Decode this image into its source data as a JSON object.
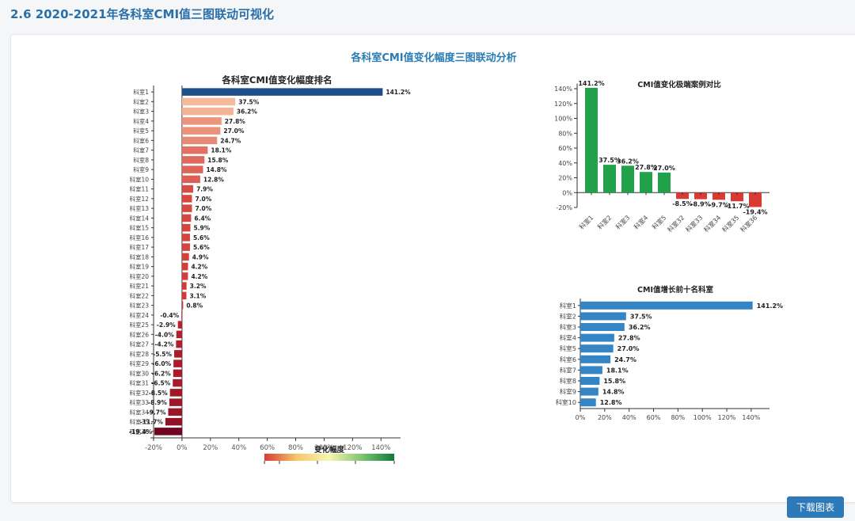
{
  "page": {
    "heading": "2.6 2020-2021年各科室CMI值三图联动可视化",
    "title": "各科室CMI值变化幅度三图联动分析",
    "download_label": "下载图表"
  },
  "colors": {
    "accent": "#2e7ab8",
    "positive_green": "#21a24a",
    "negative_red": "#d93b32",
    "top10_blue": "#3385c6",
    "first_bar": "#1f4f8a"
  },
  "chart_data": [
    {
      "id": "ranking",
      "type": "bar",
      "orientation": "horizontal",
      "title": "各科室CMI值变化幅度排名",
      "categories": [
        "科室1",
        "科室2",
        "科室3",
        "科室4",
        "科室5",
        "科室6",
        "科室7",
        "科室8",
        "科室9",
        "科室10",
        "科室11",
        "科室12",
        "科室13",
        "科室14",
        "科室15",
        "科室16",
        "科室17",
        "科室18",
        "科室19",
        "科室20",
        "科室21",
        "科室22",
        "科室23",
        "科室24",
        "科室25",
        "科室26",
        "科室27",
        "科室28",
        "科室29",
        "科室30",
        "科室31",
        "科室32",
        "科室33",
        "科室34",
        "科室35",
        "科室36"
      ],
      "values": [
        141.2,
        37.5,
        36.2,
        27.8,
        27.0,
        24.7,
        18.1,
        15.8,
        14.8,
        12.8,
        7.9,
        7.0,
        7.0,
        6.4,
        5.9,
        5.6,
        5.6,
        4.9,
        4.2,
        4.2,
        3.2,
        3.1,
        0.8,
        -0.4,
        -2.9,
        -4.0,
        -4.2,
        -5.5,
        -6.0,
        -6.2,
        -6.5,
        -8.5,
        -8.9,
        -9.7,
        -11.7,
        -19.4
      ],
      "labels": [
        "141.2%",
        "37.5%",
        "36.2%",
        "27.8%",
        "27.0%",
        "24.7%",
        "18.1%",
        "15.8%",
        "14.8%",
        "12.8%",
        "7.9%",
        "7.0%",
        "7.0%",
        "6.4%",
        "5.9%",
        "5.6%",
        "5.6%",
        "4.9%",
        "4.2%",
        "4.2%",
        "3.2%",
        "3.1%",
        "0.8%",
        "-0.4%",
        "-2.9%",
        "-4.0%",
        "-4.2%",
        "-5.5%",
        "-6.0%",
        "-6.2%",
        "-6.5%",
        "-8.5%",
        "-8.9%",
        "-9.7%",
        "-11.7%",
        "-19.4%"
      ],
      "xlim": [
        -20,
        150
      ],
      "xticks": [
        -20,
        0,
        20,
        40,
        60,
        80,
        100,
        120,
        140
      ],
      "xtick_labels": [
        "-20%",
        "0%",
        "20%",
        "40%",
        "60%",
        "80%",
        "100%",
        "120%",
        "140%"
      ],
      "legend": {
        "title": "变化幅度",
        "gradient": [
          "#d93b32",
          "#f6c76a",
          "#f7f7b0",
          "#7fc46f",
          "#0f7a3a"
        ]
      }
    },
    {
      "id": "extreme",
      "type": "bar",
      "title": "CMI值变化极端案例对比",
      "categories": [
        "科室1",
        "科室2",
        "科室3",
        "科室4",
        "科室5",
        "科室32",
        "科室33",
        "科室34",
        "科室35",
        "科室36"
      ],
      "values": [
        141.2,
        37.5,
        36.2,
        27.8,
        27.0,
        -8.5,
        -8.9,
        -9.7,
        -11.7,
        -19.4
      ],
      "labels": [
        "141.2%",
        "37.5%",
        "36.2%",
        "27.8%",
        "27.0%",
        "-8.5%",
        "-8.9%",
        "-9.7%",
        "-11.7%",
        "-19.4%"
      ],
      "ylim": [
        -20,
        150
      ],
      "yticks": [
        -20,
        0,
        20,
        40,
        60,
        80,
        100,
        120,
        140
      ],
      "ytick_labels": [
        "-20%",
        "0%",
        "20%",
        "40%",
        "60%",
        "80%",
        "100%",
        "120%",
        "140%"
      ]
    },
    {
      "id": "top10",
      "type": "bar",
      "orientation": "horizontal",
      "title": "CMI值增长前十名科室",
      "categories": [
        "科室1",
        "科室2",
        "科室3",
        "科室4",
        "科室5",
        "科室6",
        "科室7",
        "科室8",
        "科室9",
        "科室10"
      ],
      "values": [
        141.2,
        37.5,
        36.2,
        27.8,
        27.0,
        24.7,
        18.1,
        15.8,
        14.8,
        12.8
      ],
      "labels": [
        "141.2%",
        "37.5%",
        "36.2%",
        "27.8%",
        "27.0%",
        "24.7%",
        "18.1%",
        "15.8%",
        "14.8%",
        "12.8%"
      ],
      "xlim": [
        0,
        155
      ],
      "xticks": [
        0,
        20,
        40,
        60,
        80,
        100,
        120,
        140
      ],
      "xtick_labels": [
        "0%",
        "20%",
        "40%",
        "60%",
        "80%",
        "100%",
        "120%",
        "140%"
      ]
    }
  ]
}
